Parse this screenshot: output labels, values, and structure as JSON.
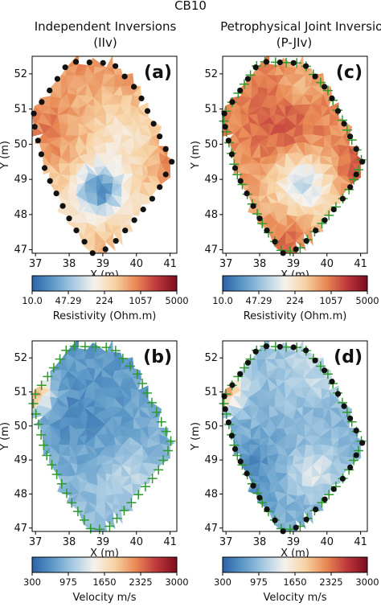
{
  "title": "CB10",
  "colors": {
    "cmap": [
      "#2b62a8",
      "#5e9ac8",
      "#a8cbe2",
      "#f5f2ee",
      "#f7d2a3",
      "#e98a55",
      "#c0393b",
      "#7b0c1f"
    ],
    "marker_dot": "#111111",
    "marker_cross": "#2e9a2e"
  },
  "chart_data": [
    {
      "type": "heatmap",
      "panel_label": "(a)",
      "column_title": "Independent Inversions",
      "column_subtitle": "(IIv)",
      "xlabel": "X (m)",
      "ylabel": "Y (m)",
      "xlim": [
        36.9,
        41.2
      ],
      "ylim": [
        46.9,
        52.5
      ],
      "xticks": [
        "37",
        "38",
        "39",
        "40",
        "41"
      ],
      "yticks": [
        "47",
        "48",
        "49",
        "50",
        "51",
        "52"
      ],
      "colorbar": {
        "label": "Resistivity (Ohm.m)",
        "ticks": [
          "10.0",
          "47.29",
          "224",
          "1057",
          "5000"
        ]
      },
      "markers": {
        "circles": true,
        "crosses": false
      },
      "field": "resistivity_a"
    },
    {
      "type": "heatmap",
      "panel_label": "(c)",
      "column_title": "Petrophysical Joint Inversion",
      "column_subtitle": "(P-JIv)",
      "xlabel": "X (m)",
      "ylabel": "Y (m)",
      "xlim": [
        36.9,
        41.2
      ],
      "ylim": [
        46.9,
        52.5
      ],
      "xticks": [
        "37",
        "38",
        "39",
        "40",
        "41"
      ],
      "yticks": [
        "47",
        "48",
        "49",
        "50",
        "51",
        "52"
      ],
      "colorbar": {
        "label": "Resistivity (Ohm.m)",
        "ticks": [
          "10.0",
          "47.29",
          "224",
          "1057",
          "5000"
        ]
      },
      "markers": {
        "circles": true,
        "crosses": true
      },
      "field": "resistivity_c"
    },
    {
      "type": "heatmap",
      "panel_label": "(b)",
      "xlabel": "X (m)",
      "ylabel": "Y (m)",
      "xlim": [
        36.9,
        41.2
      ],
      "ylim": [
        46.9,
        52.5
      ],
      "xticks": [
        "37",
        "38",
        "39",
        "40",
        "41"
      ],
      "yticks": [
        "47",
        "48",
        "49",
        "50",
        "51",
        "52"
      ],
      "colorbar": {
        "label": "Velocity m/s",
        "ticks": [
          "300",
          "975",
          "1650",
          "2325",
          "3000"
        ]
      },
      "markers": {
        "circles": false,
        "crosses": true
      },
      "field": "velocity_b"
    },
    {
      "type": "heatmap",
      "panel_label": "(d)",
      "xlabel": "X (m)",
      "ylabel": "Y (m)",
      "xlim": [
        36.9,
        41.2
      ],
      "ylim": [
        46.9,
        52.5
      ],
      "xticks": [
        "37",
        "38",
        "39",
        "40",
        "41"
      ],
      "yticks": [
        "47",
        "48",
        "49",
        "50",
        "51",
        "52"
      ],
      "colorbar": {
        "label": "Velocity m/s",
        "ticks": [
          "300",
          "975",
          "1650",
          "2325",
          "3000"
        ]
      },
      "markers": {
        "circles": true,
        "crosses": true
      },
      "field": "velocity_d"
    }
  ]
}
